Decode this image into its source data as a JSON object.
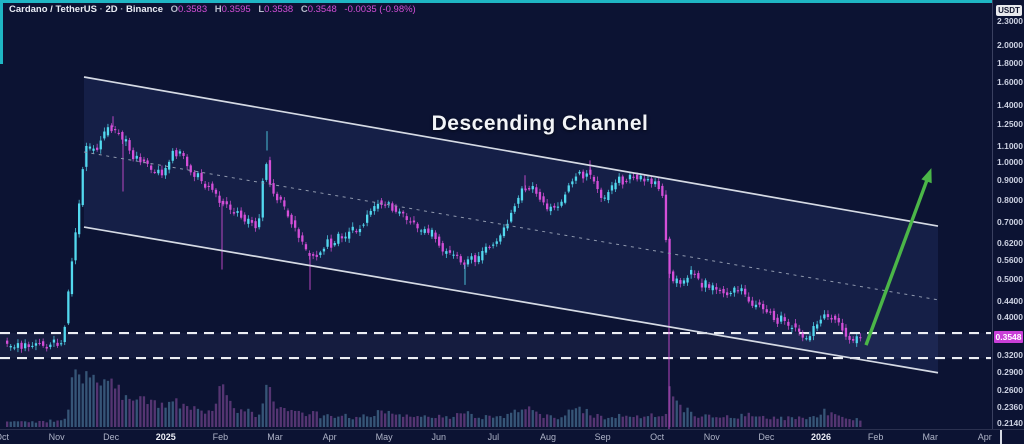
{
  "header": {
    "symbol": "Cardano / TetherUS",
    "sep1": "·",
    "interval": "2D",
    "sep2": "·",
    "exchange": "Binance",
    "o_label": "O",
    "o": "0.3583",
    "h_label": "H",
    "h": "0.3595",
    "l_label": "L",
    "l": "0.3538",
    "c_label": "C",
    "c": "0.3548",
    "change": "-0.0035 (-0.98%)"
  },
  "annotation": {
    "label": "Descending Channel"
  },
  "price_axis": {
    "unit": "USDT",
    "last_price": "0.3548",
    "ticks": [
      "2.3000",
      "2.0000",
      "1.8000",
      "1.6000",
      "1.4000",
      "1.2500",
      "1.1000",
      "1.0000",
      "0.9000",
      "0.8000",
      "0.7000",
      "0.6200",
      "0.5600",
      "0.5000",
      "0.4400",
      "0.4000",
      "0.3200",
      "0.2900",
      "0.2600",
      "0.2360",
      "0.2140"
    ]
  },
  "time_axis": {
    "labels": [
      "Oct",
      "Nov",
      "Dec",
      "2025",
      "Feb",
      "Mar",
      "Apr",
      "May",
      "Jun",
      "Jul",
      "Aug",
      "Sep",
      "Oct",
      "Nov",
      "Dec",
      "2026",
      "Feb",
      "Mar",
      "Apr"
    ],
    "year_labels": [
      "2025",
      "2026"
    ]
  },
  "colors": {
    "up": "#53d9ef",
    "down": "#d44fd8",
    "vol_up": "rgba(96,152,188,0.5)",
    "vol_down": "rgba(158,88,178,0.5)",
    "channel_line": "#d5dae4",
    "channel_mid": "#8f98ad",
    "channel_fill": "rgba(108,140,255,0.10)",
    "support_line": "#eceef4",
    "support_fill": "rgba(140,162,230,0.07)",
    "arrow": "#4bb648",
    "chip_bg": "#c93fd8",
    "accent_teal": "#1fb6c4"
  },
  "chart_data": {
    "type": "candlestick",
    "symbol": "ADA/USDT",
    "timeframe": "2D",
    "scale": "log",
    "ylim": [
      0.214,
      2.3
    ],
    "title_annotation": "Descending Channel",
    "last_close": 0.3548,
    "channel": {
      "upper": [
        [
          84,
          1.652
        ],
        [
          938,
          0.685
        ]
      ],
      "lower": [
        [
          84,
          0.681
        ],
        [
          938,
          0.288
        ]
      ],
      "middle": [
        [
          84,
          1.061
        ],
        [
          938,
          0.443
        ]
      ]
    },
    "support_zone": {
      "top": 0.364,
      "bottom": 0.314
    },
    "arrow": {
      "from": [
        866,
        0.339
      ],
      "to": [
        930,
        0.943
      ]
    },
    "price_path": [
      [
        6,
        0.345
      ],
      [
        8,
        0.339
      ],
      [
        12,
        0.334
      ],
      [
        16,
        0.331
      ],
      [
        20,
        0.342
      ],
      [
        24,
        0.336
      ],
      [
        28,
        0.344
      ],
      [
        32,
        0.334
      ],
      [
        36,
        0.34
      ],
      [
        40,
        0.346
      ],
      [
        44,
        0.338
      ],
      [
        48,
        0.334
      ],
      [
        52,
        0.342
      ],
      [
        56,
        0.348
      ],
      [
        60,
        0.34
      ],
      [
        64,
        0.345
      ],
      [
        66,
        0.358
      ],
      [
        68,
        0.4
      ],
      [
        70,
        0.443
      ],
      [
        72,
        0.5
      ],
      [
        74,
        0.554
      ],
      [
        76,
        0.6
      ],
      [
        78,
        0.66
      ],
      [
        80,
        0.72
      ],
      [
        82,
        0.8
      ],
      [
        84,
        0.9
      ],
      [
        86,
        1.0
      ],
      [
        88,
        1.1
      ],
      [
        91,
        1.05
      ],
      [
        94,
        1.12
      ],
      [
        97,
        1.06
      ],
      [
        100,
        1.09
      ],
      [
        104,
        1.15
      ],
      [
        108,
        1.2
      ],
      [
        112,
        1.25
      ],
      [
        116,
        1.17
      ],
      [
        120,
        1.22
      ],
      [
        124,
        1.12
      ],
      [
        128,
        1.15
      ],
      [
        132,
        1.06
      ],
      [
        136,
        1.02
      ],
      [
        140,
        1.05
      ],
      [
        144,
        0.99
      ],
      [
        148,
        1.01
      ],
      [
        152,
        0.965
      ],
      [
        156,
        0.935
      ],
      [
        160,
        0.95
      ],
      [
        164,
        0.92
      ],
      [
        168,
        0.965
      ],
      [
        172,
        1.02
      ],
      [
        176,
        1.07
      ],
      [
        180,
        1.04
      ],
      [
        184,
        1.09
      ],
      [
        188,
        1.0
      ],
      [
        192,
        0.95
      ],
      [
        196,
        0.91
      ],
      [
        200,
        0.93
      ],
      [
        204,
        0.89
      ],
      [
        208,
        0.86
      ],
      [
        212,
        0.88
      ],
      [
        216,
        0.84
      ],
      [
        220,
        0.81
      ],
      [
        224,
        0.78
      ],
      [
        228,
        0.8
      ],
      [
        232,
        0.76
      ],
      [
        236,
        0.73
      ],
      [
        240,
        0.755
      ],
      [
        244,
        0.72
      ],
      [
        248,
        0.7
      ],
      [
        252,
        0.715
      ],
      [
        256,
        0.695
      ],
      [
        260,
        0.67
      ],
      [
        264,
        0.8
      ],
      [
        267,
        1.07
      ],
      [
        270,
        0.95
      ],
      [
        274,
        0.85
      ],
      [
        278,
        0.8
      ],
      [
        282,
        0.82
      ],
      [
        286,
        0.77
      ],
      [
        290,
        0.73
      ],
      [
        294,
        0.7
      ],
      [
        298,
        0.67
      ],
      [
        302,
        0.64
      ],
      [
        306,
        0.61
      ],
      [
        310,
        0.575
      ],
      [
        314,
        0.59
      ],
      [
        318,
        0.565
      ],
      [
        322,
        0.585
      ],
      [
        326,
        0.605
      ],
      [
        330,
        0.63
      ],
      [
        334,
        0.605
      ],
      [
        338,
        0.63
      ],
      [
        342,
        0.655
      ],
      [
        346,
        0.63
      ],
      [
        350,
        0.655
      ],
      [
        354,
        0.68
      ],
      [
        358,
        0.655
      ],
      [
        362,
        0.68
      ],
      [
        366,
        0.7
      ],
      [
        370,
        0.725
      ],
      [
        374,
        0.75
      ],
      [
        378,
        0.775
      ],
      [
        382,
        0.8
      ],
      [
        386,
        0.775
      ],
      [
        390,
        0.8
      ],
      [
        394,
        0.765
      ],
      [
        398,
        0.74
      ],
      [
        402,
        0.755
      ],
      [
        406,
        0.725
      ],
      [
        410,
        0.7
      ],
      [
        414,
        0.715
      ],
      [
        418,
        0.685
      ],
      [
        422,
        0.66
      ],
      [
        426,
        0.675
      ],
      [
        430,
        0.645
      ],
      [
        434,
        0.67
      ],
      [
        438,
        0.64
      ],
      [
        442,
        0.61
      ],
      [
        446,
        0.585
      ],
      [
        450,
        0.6
      ],
      [
        454,
        0.57
      ],
      [
        458,
        0.59
      ],
      [
        462,
        0.56
      ],
      [
        466,
        0.54
      ],
      [
        470,
        0.555
      ],
      [
        474,
        0.57
      ],
      [
        478,
        0.55
      ],
      [
        482,
        0.57
      ],
      [
        486,
        0.59
      ],
      [
        490,
        0.61
      ],
      [
        494,
        0.6
      ],
      [
        498,
        0.62
      ],
      [
        502,
        0.64
      ],
      [
        506,
        0.67
      ],
      [
        510,
        0.7
      ],
      [
        514,
        0.74
      ],
      [
        518,
        0.78
      ],
      [
        522,
        0.82
      ],
      [
        526,
        0.86
      ],
      [
        530,
        0.84
      ],
      [
        534,
        0.87
      ],
      [
        538,
        0.84
      ],
      [
        542,
        0.81
      ],
      [
        546,
        0.78
      ],
      [
        550,
        0.755
      ],
      [
        554,
        0.775
      ],
      [
        558,
        0.75
      ],
      [
        562,
        0.775
      ],
      [
        566,
        0.82
      ],
      [
        570,
        0.86
      ],
      [
        574,
        0.89
      ],
      [
        578,
        0.92
      ],
      [
        582,
        0.945
      ],
      [
        586,
        0.91
      ],
      [
        590,
        0.955
      ],
      [
        594,
        0.91
      ],
      [
        598,
        0.87
      ],
      [
        602,
        0.83
      ],
      [
        606,
        0.8
      ],
      [
        610,
        0.83
      ],
      [
        614,
        0.86
      ],
      [
        618,
        0.89
      ],
      [
        622,
        0.91
      ],
      [
        626,
        0.88
      ],
      [
        630,
        0.91
      ],
      [
        634,
        0.935
      ],
      [
        638,
        0.9
      ],
      [
        642,
        0.93
      ],
      [
        646,
        0.89
      ],
      [
        650,
        0.91
      ],
      [
        654,
        0.87
      ],
      [
        658,
        0.89
      ],
      [
        662,
        0.855
      ],
      [
        666,
        0.82
      ],
      [
        669,
        0.6
      ],
      [
        672,
        0.52
      ],
      [
        676,
        0.49
      ],
      [
        680,
        0.5
      ],
      [
        684,
        0.485
      ],
      [
        688,
        0.5
      ],
      [
        692,
        0.515
      ],
      [
        696,
        0.53
      ],
      [
        700,
        0.5
      ],
      [
        704,
        0.48
      ],
      [
        708,
        0.49
      ],
      [
        712,
        0.47
      ],
      [
        716,
        0.485
      ],
      [
        720,
        0.465
      ],
      [
        724,
        0.475
      ],
      [
        728,
        0.455
      ],
      [
        732,
        0.465
      ],
      [
        736,
        0.475
      ],
      [
        740,
        0.46
      ],
      [
        744,
        0.47
      ],
      [
        748,
        0.455
      ],
      [
        752,
        0.44
      ],
      [
        756,
        0.425
      ],
      [
        760,
        0.435
      ],
      [
        764,
        0.42
      ],
      [
        768,
        0.405
      ],
      [
        772,
        0.415
      ],
      [
        776,
        0.4
      ],
      [
        780,
        0.39
      ],
      [
        784,
        0.4
      ],
      [
        788,
        0.385
      ],
      [
        792,
        0.375
      ],
      [
        796,
        0.385
      ],
      [
        800,
        0.37
      ],
      [
        804,
        0.36
      ],
      [
        808,
        0.35
      ],
      [
        812,
        0.36
      ],
      [
        816,
        0.375
      ],
      [
        820,
        0.385
      ],
      [
        824,
        0.4
      ],
      [
        828,
        0.41
      ],
      [
        832,
        0.395
      ],
      [
        836,
        0.405
      ],
      [
        840,
        0.39
      ],
      [
        844,
        0.375
      ],
      [
        848,
        0.362
      ],
      [
        852,
        0.352
      ],
      [
        856,
        0.345
      ],
      [
        860,
        0.3548
      ]
    ],
    "special_wicks": [
      [
        113,
        1.31,
        "down"
      ],
      [
        123,
        0.84,
        "down"
      ],
      [
        222,
        0.53,
        "down"
      ],
      [
        267,
        1.2,
        "up"
      ],
      [
        310,
        0.47,
        "down"
      ],
      [
        465,
        0.484,
        "up"
      ],
      [
        525,
        0.925,
        "down"
      ],
      [
        590,
        1.01,
        "down"
      ],
      [
        669,
        0.2,
        "down"
      ]
    ],
    "volume_profile": [
      [
        6,
        5
      ],
      [
        20,
        6
      ],
      [
        36,
        5
      ],
      [
        50,
        7
      ],
      [
        62,
        8
      ],
      [
        66,
        16
      ],
      [
        70,
        42
      ],
      [
        74,
        55
      ],
      [
        78,
        48
      ],
      [
        84,
        58
      ],
      [
        90,
        62
      ],
      [
        96,
        45
      ],
      [
        102,
        50
      ],
      [
        108,
        40
      ],
      [
        114,
        46
      ],
      [
        120,
        34
      ],
      [
        126,
        38
      ],
      [
        132,
        28
      ],
      [
        140,
        30
      ],
      [
        148,
        24
      ],
      [
        156,
        27
      ],
      [
        164,
        20
      ],
      [
        172,
        28
      ],
      [
        180,
        24
      ],
      [
        188,
        20
      ],
      [
        196,
        24
      ],
      [
        204,
        18
      ],
      [
        212,
        20
      ],
      [
        222,
        46
      ],
      [
        228,
        24
      ],
      [
        236,
        16
      ],
      [
        244,
        18
      ],
      [
        252,
        13
      ],
      [
        260,
        16
      ],
      [
        267,
        44
      ],
      [
        274,
        28
      ],
      [
        282,
        18
      ],
      [
        290,
        15
      ],
      [
        298,
        17
      ],
      [
        306,
        13
      ],
      [
        314,
        15
      ],
      [
        322,
        11
      ],
      [
        330,
        14
      ],
      [
        338,
        11
      ],
      [
        346,
        13
      ],
      [
        354,
        10
      ],
      [
        362,
        12
      ],
      [
        370,
        14
      ],
      [
        378,
        16
      ],
      [
        386,
        19
      ],
      [
        394,
        13
      ],
      [
        402,
        11
      ],
      [
        410,
        13
      ],
      [
        418,
        10
      ],
      [
        426,
        12
      ],
      [
        434,
        10
      ],
      [
        442,
        13
      ],
      [
        450,
        11
      ],
      [
        458,
        14
      ],
      [
        466,
        18
      ],
      [
        474,
        12
      ],
      [
        482,
        10
      ],
      [
        490,
        12
      ],
      [
        498,
        11
      ],
      [
        506,
        14
      ],
      [
        514,
        17
      ],
      [
        522,
        22
      ],
      [
        530,
        17
      ],
      [
        538,
        13
      ],
      [
        546,
        11
      ],
      [
        554,
        10
      ],
      [
        562,
        13
      ],
      [
        570,
        17
      ],
      [
        578,
        20
      ],
      [
        586,
        16
      ],
      [
        594,
        12
      ],
      [
        602,
        10
      ],
      [
        610,
        12
      ],
      [
        618,
        13
      ],
      [
        626,
        11
      ],
      [
        634,
        12
      ],
      [
        642,
        10
      ],
      [
        650,
        12
      ],
      [
        658,
        13
      ],
      [
        666,
        17
      ],
      [
        669,
        55
      ],
      [
        674,
        28
      ],
      [
        680,
        20
      ],
      [
        688,
        16
      ],
      [
        696,
        13
      ],
      [
        704,
        11
      ],
      [
        712,
        12
      ],
      [
        720,
        10
      ],
      [
        728,
        12
      ],
      [
        736,
        10
      ],
      [
        744,
        13
      ],
      [
        752,
        15
      ],
      [
        760,
        10
      ],
      [
        768,
        9
      ],
      [
        776,
        10
      ],
      [
        784,
        9
      ],
      [
        792,
        10
      ],
      [
        800,
        9
      ],
      [
        808,
        11
      ],
      [
        816,
        13
      ],
      [
        824,
        17
      ],
      [
        832,
        12
      ],
      [
        840,
        10
      ],
      [
        848,
        9
      ],
      [
        856,
        8
      ],
      [
        860,
        7
      ]
    ]
  }
}
